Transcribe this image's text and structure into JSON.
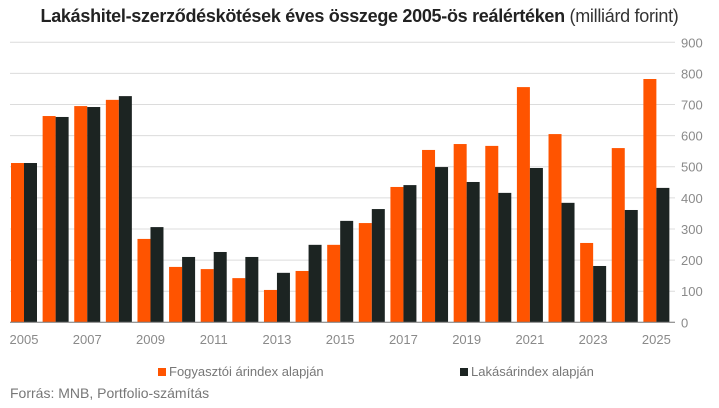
{
  "chart_data": {
    "type": "bar",
    "title": "Lakáshitel-szerződéskötések éves összege 2005-ös reálértéken",
    "subtitle": "(milliárd forint)",
    "categories": [
      "2005",
      "2006",
      "2007",
      "2008",
      "2009",
      "2010",
      "2011",
      "2012",
      "2013",
      "2014",
      "2015",
      "2016",
      "2017",
      "2018",
      "2019",
      "2020",
      "2021",
      "2022",
      "2023",
      "2024",
      "2025"
    ],
    "x_tick_labels": [
      "2005",
      "2007",
      "2009",
      "2011",
      "2013",
      "2015",
      "2017",
      "2019",
      "2021",
      "2023",
      "2025"
    ],
    "y_tick_labels": [
      "0",
      "100",
      "200",
      "300",
      "400",
      "500",
      "600",
      "700",
      "800",
      "900"
    ],
    "ylim": [
      0,
      900
    ],
    "y_axis_position": "right",
    "grid": true,
    "legend_placement": "bottom",
    "series": [
      {
        "name": "Fogyasztói árindex alapján",
        "color": "#ff5400",
        "values": [
          512,
          663,
          695,
          715,
          268,
          178,
          171,
          142,
          104,
          165,
          249,
          319,
          435,
          554,
          573,
          567,
          756,
          605,
          255,
          560,
          782
        ]
      },
      {
        "name": "Lakásárindex alapján",
        "color": "#1c2422",
        "values": [
          512,
          660,
          692,
          727,
          306,
          210,
          226,
          210,
          159,
          249,
          326,
          364,
          441,
          499,
          451,
          416,
          496,
          384,
          181,
          361,
          432
        ]
      }
    ]
  },
  "source": "Forrás: MNB, Portfolio-számítás"
}
